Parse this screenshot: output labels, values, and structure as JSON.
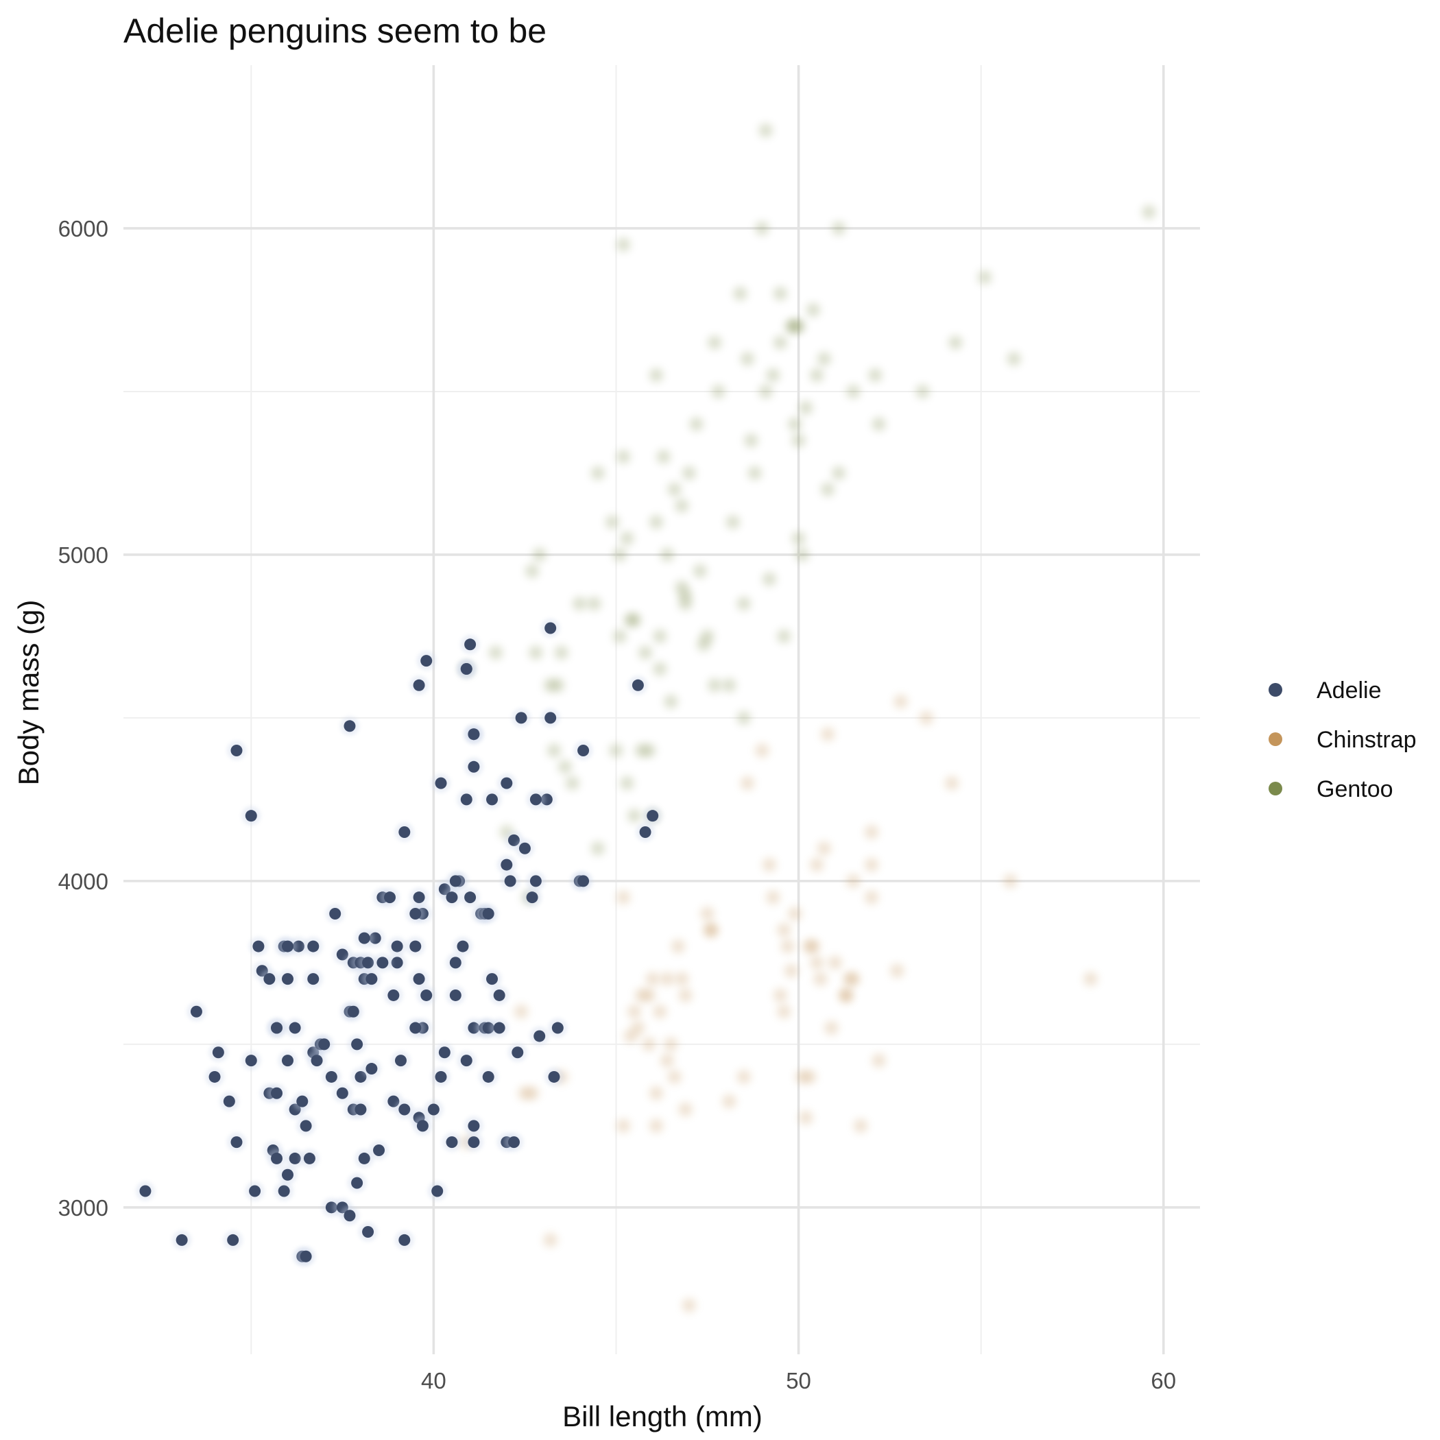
{
  "chart_data": {
    "type": "scatter",
    "title": "Adelie penguins seem to be",
    "xlabel": "Bill length (mm)",
    "ylabel": "Body mass (g)",
    "xlim": [
      31.5,
      61.0
    ],
    "ylim": [
      2550,
      6500
    ],
    "x_ticks": [
      40,
      50,
      60
    ],
    "y_ticks": [
      3000,
      4000,
      5000,
      6000
    ],
    "x_minor": [
      35,
      45,
      55
    ],
    "y_minor": [
      3500,
      4500,
      5500
    ],
    "grid": true,
    "legend_position": "right",
    "series": [
      {
        "name": "Adelie",
        "color": "#3d4b68",
        "emphasis": "highlighted",
        "points": [
          [
            32.1,
            3050
          ],
          [
            33.1,
            2900
          ],
          [
            33.5,
            3600
          ],
          [
            34.0,
            3400
          ],
          [
            34.1,
            3475
          ],
          [
            34.4,
            3325
          ],
          [
            34.5,
            2900
          ],
          [
            34.6,
            3200
          ],
          [
            34.6,
            4400
          ],
          [
            35.0,
            3450
          ],
          [
            35.0,
            4200
          ],
          [
            35.1,
            3050
          ],
          [
            35.2,
            3800
          ],
          [
            35.3,
            3725
          ],
          [
            35.5,
            3700
          ],
          [
            35.5,
            3350
          ],
          [
            35.6,
            3175
          ],
          [
            35.7,
            3150
          ],
          [
            35.7,
            3550
          ],
          [
            35.7,
            3350
          ],
          [
            35.9,
            3050
          ],
          [
            35.9,
            3800
          ],
          [
            36.0,
            3450
          ],
          [
            36.0,
            3100
          ],
          [
            36.0,
            3700
          ],
          [
            36.2,
            3150
          ],
          [
            36.2,
            3300
          ],
          [
            36.2,
            3550
          ],
          [
            36.3,
            3800
          ],
          [
            36.4,
            3325
          ],
          [
            36.4,
            2850
          ],
          [
            36.5,
            2850
          ],
          [
            36.6,
            3150
          ],
          [
            36.7,
            3700
          ],
          [
            36.7,
            3475
          ],
          [
            36.7,
            3800
          ],
          [
            36.8,
            3450
          ],
          [
            36.9,
            3500
          ],
          [
            37.0,
            3500
          ],
          [
            37.2,
            3400
          ],
          [
            37.2,
            3000
          ],
          [
            37.3,
            3900
          ],
          [
            37.5,
            3775
          ],
          [
            37.5,
            3000
          ],
          [
            37.5,
            3350
          ],
          [
            37.7,
            2975
          ],
          [
            37.7,
            3600
          ],
          [
            37.7,
            4475
          ],
          [
            37.8,
            3750
          ],
          [
            37.8,
            3300
          ],
          [
            37.8,
            3600
          ],
          [
            37.9,
            3500
          ],
          [
            37.9,
            3075
          ],
          [
            38.0,
            3400
          ],
          [
            38.0,
            3300
          ],
          [
            38.0,
            3750
          ],
          [
            38.1,
            3700
          ],
          [
            38.1,
            3150
          ],
          [
            38.2,
            2925
          ],
          [
            38.2,
            3750
          ],
          [
            38.3,
            3425
          ],
          [
            38.3,
            3700
          ],
          [
            38.4,
            3825
          ],
          [
            38.5,
            3175
          ],
          [
            38.6,
            3950
          ],
          [
            38.8,
            3950
          ],
          [
            38.9,
            3325
          ],
          [
            39.0,
            3800
          ],
          [
            39.0,
            3750
          ],
          [
            39.1,
            3450
          ],
          [
            39.2,
            2900
          ],
          [
            39.2,
            3300
          ],
          [
            39.5,
            3800
          ],
          [
            39.6,
            3950
          ],
          [
            39.6,
            3275
          ],
          [
            39.6,
            3700
          ],
          [
            39.7,
            3250
          ],
          [
            39.8,
            3650
          ],
          [
            39.8,
            4675
          ],
          [
            40.0,
            3300
          ],
          [
            40.1,
            3050
          ],
          [
            40.2,
            3400
          ],
          [
            40.2,
            4300
          ],
          [
            40.6,
            3650
          ],
          [
            40.6,
            3750
          ],
          [
            40.8,
            3800
          ],
          [
            40.9,
            3450
          ],
          [
            40.9,
            4250
          ],
          [
            40.9,
            4650
          ],
          [
            40.9,
            4650
          ],
          [
            41.0,
            3950
          ],
          [
            41.1,
            3200
          ],
          [
            41.1,
            3250
          ],
          [
            41.1,
            3550
          ],
          [
            41.1,
            4350
          ],
          [
            41.1,
            4450
          ],
          [
            41.1,
            4450
          ],
          [
            41.3,
            3900
          ],
          [
            41.4,
            3900
          ],
          [
            41.4,
            3550
          ],
          [
            41.5,
            3400
          ],
          [
            41.5,
            3550
          ],
          [
            41.6,
            3700
          ],
          [
            41.6,
            4250
          ],
          [
            41.8,
            3650
          ],
          [
            42.0,
            4050
          ],
          [
            42.0,
            4300
          ],
          [
            42.0,
            3200
          ],
          [
            42.2,
            3200
          ],
          [
            42.2,
            4125
          ],
          [
            42.3,
            3475
          ],
          [
            42.5,
            4100
          ],
          [
            42.7,
            3950
          ],
          [
            42.8,
            4000
          ],
          [
            42.9,
            3525
          ],
          [
            43.1,
            4250
          ],
          [
            43.2,
            4775
          ],
          [
            43.3,
            3400
          ],
          [
            43.4,
            3550
          ],
          [
            44.0,
            4000
          ],
          [
            44.1,
            4400
          ],
          [
            44.1,
            4000
          ],
          [
            45.6,
            4600
          ],
          [
            45.8,
            4150
          ],
          [
            46.0,
            4200
          ],
          [
            41.0,
            4725
          ],
          [
            39.2,
            4150
          ],
          [
            39.6,
            4600
          ],
          [
            38.6,
            3750
          ],
          [
            40.3,
            3975
          ],
          [
            40.5,
            3950
          ],
          [
            40.5,
            3200
          ],
          [
            40.7,
            4000
          ],
          [
            41.5,
            3900
          ],
          [
            41.8,
            3550
          ],
          [
            42.1,
            4000
          ],
          [
            42.4,
            4500
          ],
          [
            42.8,
            4250
          ],
          [
            43.2,
            4500
          ],
          [
            40.6,
            4000
          ],
          [
            39.7,
            3550
          ],
          [
            38.9,
            3650
          ],
          [
            39.5,
            3550
          ],
          [
            40.3,
            3475
          ],
          [
            39.7,
            3900
          ],
          [
            39.5,
            3900
          ],
          [
            38.1,
            3825
          ],
          [
            36.0,
            3800
          ],
          [
            35.7,
            3550
          ],
          [
            36.5,
            3250
          ]
        ]
      },
      {
        "name": "Chinstrap",
        "color": "#c4955b",
        "emphasis": "faded",
        "points": [
          [
            40.9,
            3200
          ],
          [
            42.4,
            3600
          ],
          [
            42.5,
            3350
          ],
          [
            42.7,
            3350
          ],
          [
            43.2,
            2900
          ],
          [
            43.5,
            3400
          ],
          [
            45.2,
            3950
          ],
          [
            45.2,
            3250
          ],
          [
            45.4,
            3525
          ],
          [
            45.5,
            3600
          ],
          [
            45.6,
            3550
          ],
          [
            45.7,
            3650
          ],
          [
            45.9,
            3650
          ],
          [
            46.0,
            3700
          ],
          [
            46.1,
            3250
          ],
          [
            46.2,
            3600
          ],
          [
            46.4,
            3700
          ],
          [
            46.4,
            3450
          ],
          [
            46.5,
            3500
          ],
          [
            46.6,
            3400
          ],
          [
            46.7,
            3800
          ],
          [
            46.8,
            3700
          ],
          [
            46.9,
            3650
          ],
          [
            46.9,
            3300
          ],
          [
            47.0,
            2700
          ],
          [
            47.5,
            3900
          ],
          [
            47.6,
            3850
          ],
          [
            48.1,
            3325
          ],
          [
            48.5,
            3400
          ],
          [
            49.0,
            4400
          ],
          [
            49.2,
            4050
          ],
          [
            49.3,
            3950
          ],
          [
            49.5,
            3650
          ],
          [
            49.6,
            3850
          ],
          [
            49.7,
            3800
          ],
          [
            49.8,
            3725
          ],
          [
            49.9,
            3900
          ],
          [
            50.1,
            3400
          ],
          [
            50.2,
            3275
          ],
          [
            50.3,
            3800
          ],
          [
            50.4,
            3800
          ],
          [
            50.5,
            4050
          ],
          [
            50.6,
            3700
          ],
          [
            50.7,
            4100
          ],
          [
            50.8,
            4450
          ],
          [
            50.9,
            3550
          ],
          [
            51.0,
            3750
          ],
          [
            51.3,
            3650
          ],
          [
            51.3,
            3650
          ],
          [
            51.4,
            3700
          ],
          [
            51.5,
            3700
          ],
          [
            51.7,
            3250
          ],
          [
            52.0,
            3950
          ],
          [
            52.0,
            4150
          ],
          [
            52.0,
            4050
          ],
          [
            52.2,
            3450
          ],
          [
            52.7,
            3725
          ],
          [
            52.8,
            4550
          ],
          [
            53.5,
            4500
          ],
          [
            54.2,
            4300
          ],
          [
            55.8,
            4000
          ],
          [
            58.0,
            3700
          ],
          [
            48.6,
            4300
          ],
          [
            47.6,
            3850
          ],
          [
            50.3,
            3400
          ],
          [
            46.1,
            3350
          ],
          [
            49.6,
            3600
          ],
          [
            51.5,
            4000
          ],
          [
            50.5,
            3750
          ],
          [
            45.9,
            3500
          ]
        ]
      },
      {
        "name": "Gentoo",
        "color": "#7b8a4c",
        "emphasis": "faded",
        "points": [
          [
            40.9,
            4650
          ],
          [
            41.7,
            4700
          ],
          [
            42.0,
            4150
          ],
          [
            42.6,
            3950
          ],
          [
            42.7,
            4950
          ],
          [
            42.8,
            4700
          ],
          [
            42.9,
            5000
          ],
          [
            43.2,
            4600
          ],
          [
            43.3,
            4400
          ],
          [
            43.4,
            4600
          ],
          [
            43.5,
            4700
          ],
          [
            43.6,
            4350
          ],
          [
            43.8,
            4300
          ],
          [
            44.0,
            4850
          ],
          [
            44.4,
            4850
          ],
          [
            44.5,
            4100
          ],
          [
            44.9,
            5100
          ],
          [
            45.0,
            4400
          ],
          [
            45.1,
            5000
          ],
          [
            45.1,
            4750
          ],
          [
            45.2,
            5300
          ],
          [
            45.2,
            5950
          ],
          [
            45.3,
            4300
          ],
          [
            45.4,
            4800
          ],
          [
            45.5,
            4200
          ],
          [
            45.5,
            4800
          ],
          [
            45.7,
            4400
          ],
          [
            45.8,
            4700
          ],
          [
            46.1,
            5100
          ],
          [
            46.2,
            4650
          ],
          [
            46.2,
            4750
          ],
          [
            46.3,
            5300
          ],
          [
            46.4,
            5000
          ],
          [
            46.5,
            4550
          ],
          [
            46.6,
            5200
          ],
          [
            46.8,
            4900
          ],
          [
            46.9,
            4875
          ],
          [
            47.2,
            5400
          ],
          [
            47.3,
            4950
          ],
          [
            47.4,
            4725
          ],
          [
            47.5,
            4750
          ],
          [
            47.7,
            5650
          ],
          [
            47.8,
            5500
          ],
          [
            48.1,
            4600
          ],
          [
            48.2,
            5100
          ],
          [
            48.4,
            5800
          ],
          [
            48.5,
            4850
          ],
          [
            48.7,
            5350
          ],
          [
            48.8,
            5250
          ],
          [
            49.0,
            6000
          ],
          [
            49.1,
            5500
          ],
          [
            49.2,
            4925
          ],
          [
            49.3,
            5550
          ],
          [
            49.5,
            5650
          ],
          [
            49.6,
            4750
          ],
          [
            49.8,
            5700
          ],
          [
            49.9,
            5400
          ],
          [
            50.0,
            5050
          ],
          [
            50.0,
            5700
          ],
          [
            50.1,
            5000
          ],
          [
            50.2,
            5450
          ],
          [
            50.4,
            5750
          ],
          [
            50.5,
            5550
          ],
          [
            50.7,
            5600
          ],
          [
            50.8,
            5200
          ],
          [
            51.1,
            5250
          ],
          [
            51.1,
            6000
          ],
          [
            51.5,
            5500
          ],
          [
            52.1,
            5550
          ],
          [
            52.2,
            5400
          ],
          [
            53.4,
            5500
          ],
          [
            54.3,
            5650
          ],
          [
            55.1,
            5850
          ],
          [
            55.9,
            5600
          ],
          [
            59.6,
            6050
          ],
          [
            49.1,
            6300
          ],
          [
            46.1,
            5550
          ],
          [
            47.0,
            5250
          ],
          [
            48.6,
            5600
          ],
          [
            49.5,
            5800
          ],
          [
            46.8,
            5150
          ],
          [
            45.3,
            5050
          ],
          [
            44.5,
            5250
          ],
          [
            46.0,
            4200
          ],
          [
            47.7,
            4600
          ],
          [
            48.5,
            4500
          ],
          [
            45.9,
            4400
          ],
          [
            49.9,
            5700
          ],
          [
            46.9,
            4850
          ],
          [
            50.0,
            5350
          ]
        ]
      }
    ]
  }
}
